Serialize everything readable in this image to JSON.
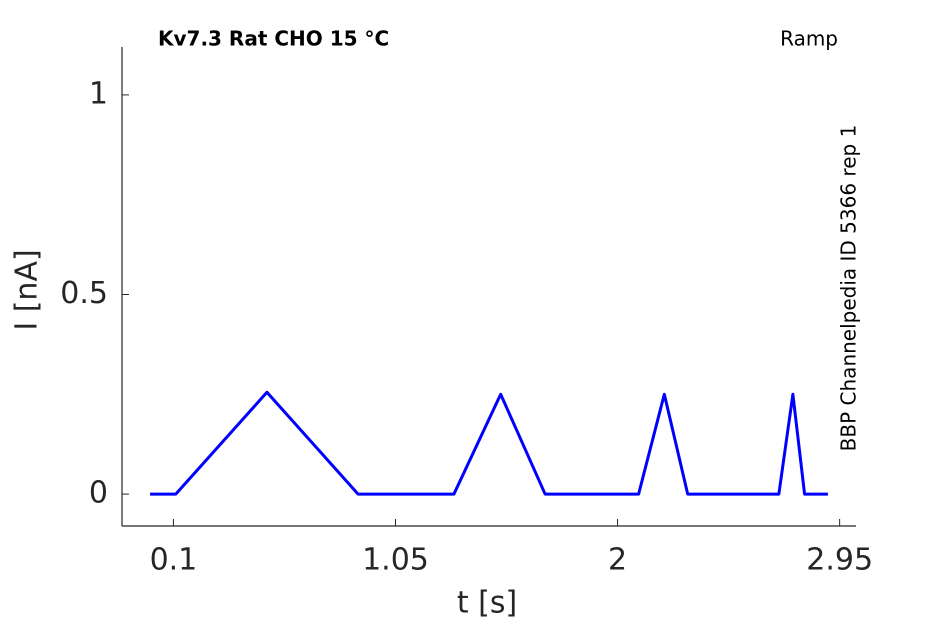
{
  "chart_data": {
    "type": "line",
    "title": "Kv7.3  Rat  CHO  15 °C",
    "annotations": [
      "Ramp",
      "BBP Channelpedia ID 5366 rep 1"
    ],
    "x_label": "t [s]",
    "y_label": "I [nA]",
    "x": [
      0,
      0.11,
      0.5,
      0.89,
      1.3,
      1.5,
      1.69,
      2.09,
      2.2,
      2.3,
      2.69,
      2.75,
      2.8,
      2.9
    ],
    "series": [
      {
        "name": "I",
        "color": "#0000ff",
        "values": [
          0,
          0,
          0.255,
          0,
          0,
          0.25,
          0,
          0,
          0.25,
          0,
          0,
          0.25,
          0,
          0
        ]
      }
    ],
    "xlim": [
      -0.12,
      3.02
    ],
    "ylim": [
      -0.08,
      1.12
    ],
    "xticks": [
      0.1,
      1.05,
      2,
      2.95
    ],
    "yticks": [
      0,
      0.5,
      1
    ]
  }
}
